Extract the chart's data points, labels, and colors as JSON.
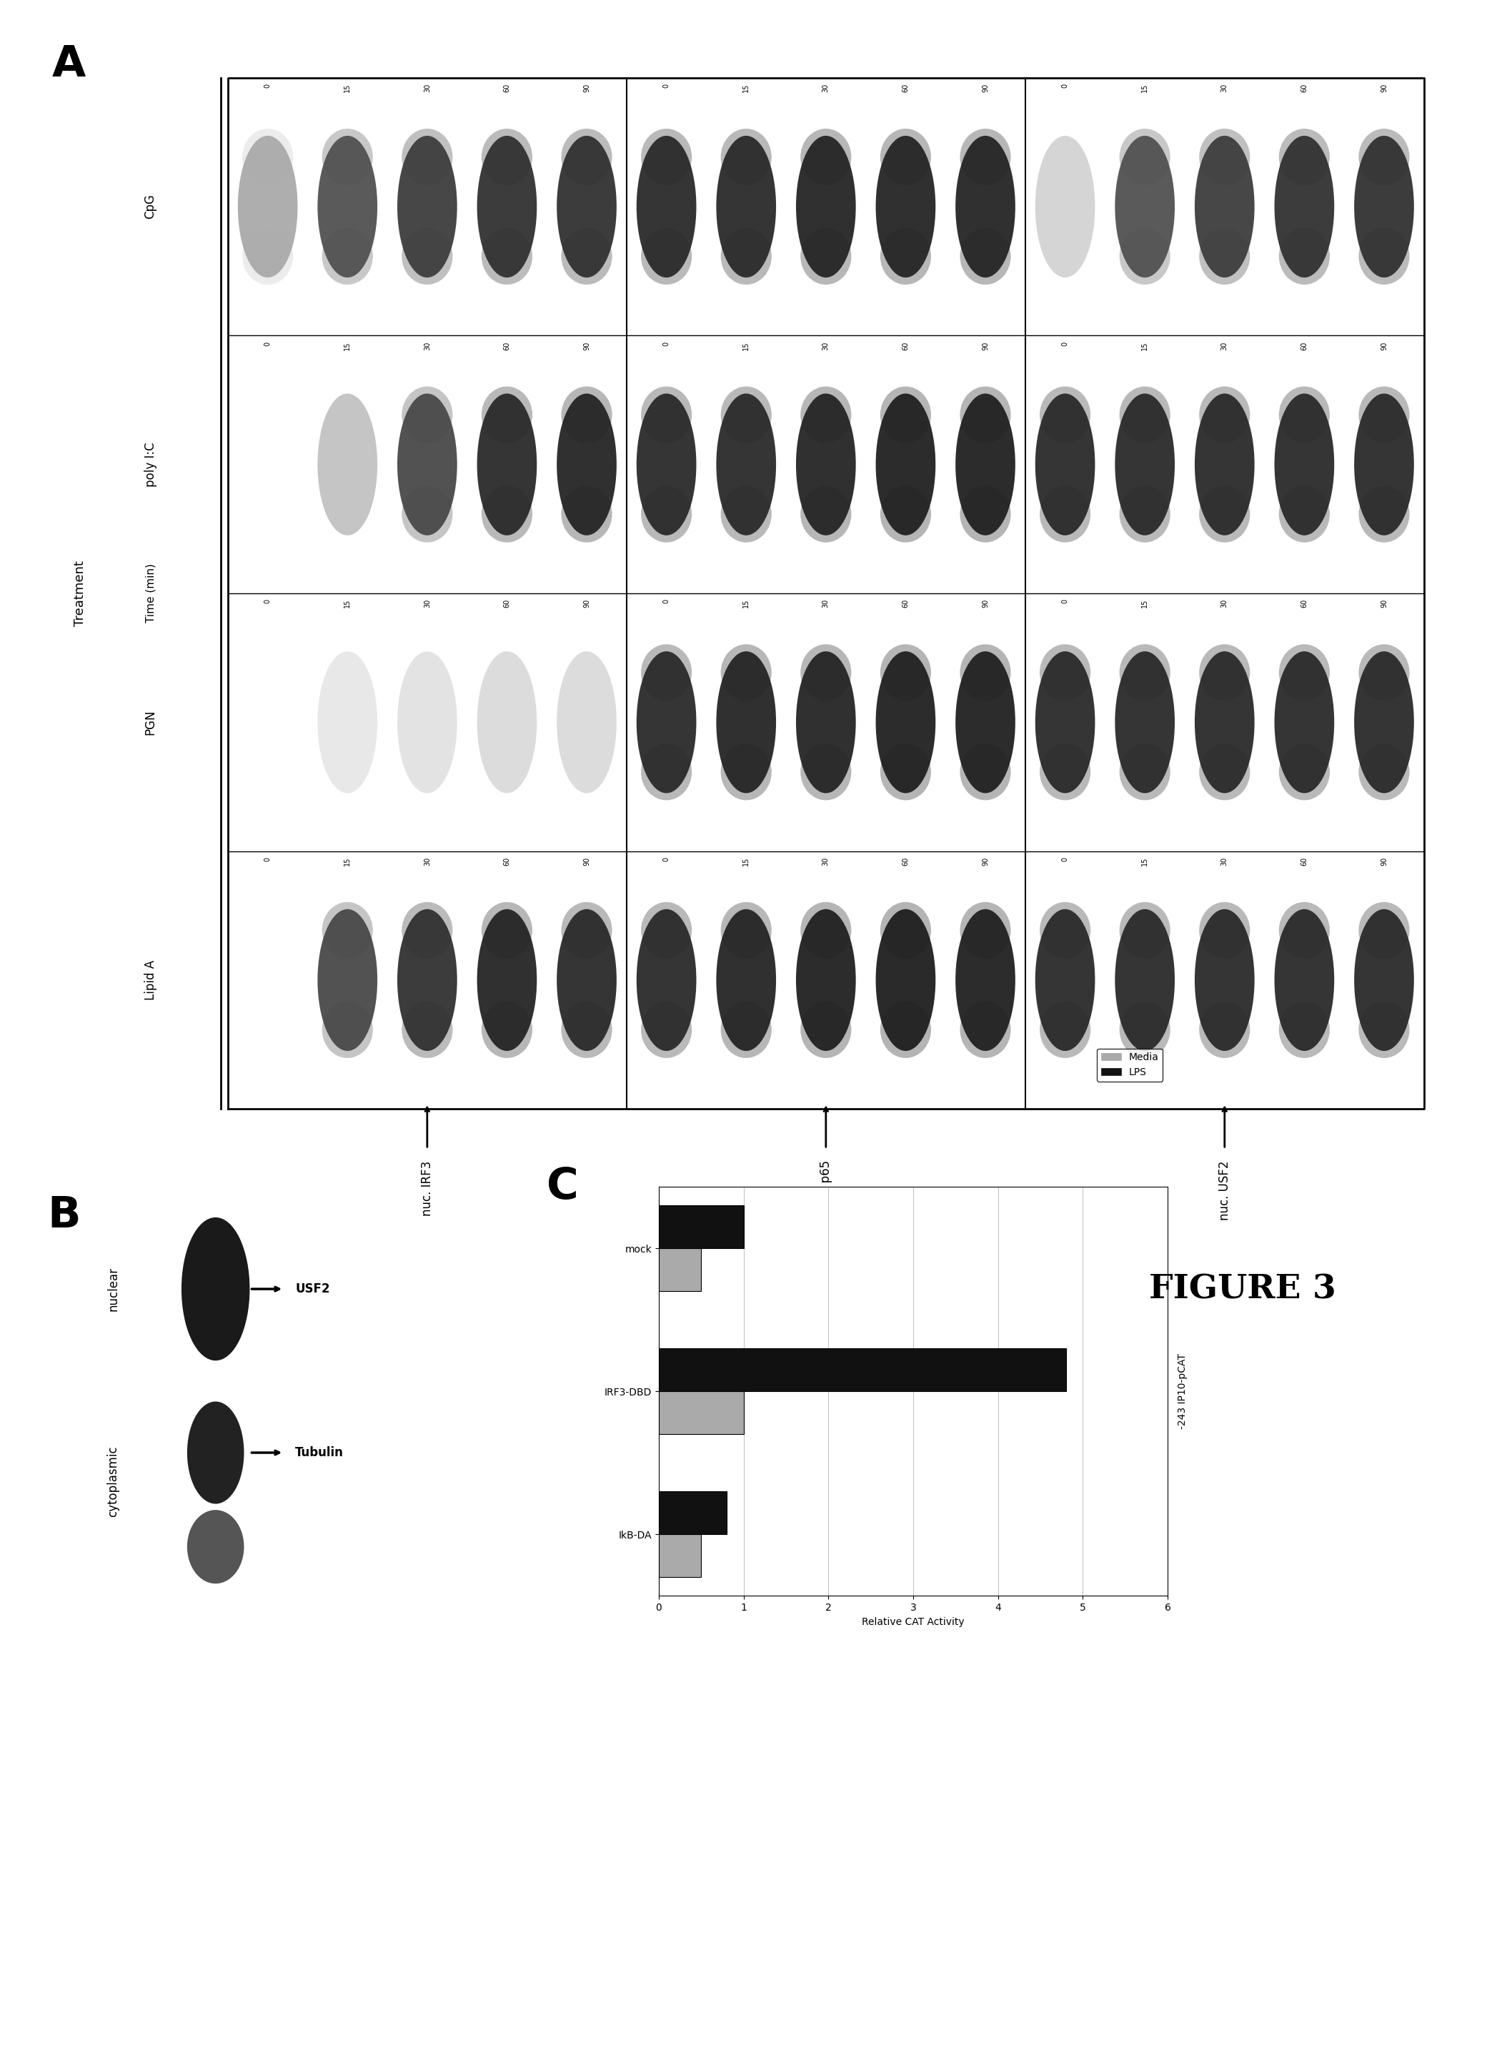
{
  "figure_title": "FIGURE 3",
  "panel_A_label": "A",
  "panel_B_label": "B",
  "panel_C_label": "C",
  "background_color": "#ffffff",
  "treatment_header": "Treatment",
  "time_header": "Time (min)",
  "treatment_labels": [
    "Lipid A",
    "PGN",
    "poly I:C",
    "CpG"
  ],
  "time_points": [
    "0",
    "15",
    "30",
    "60",
    "90"
  ],
  "row_labels": [
    "nuc. IRF3",
    "nuc. p65",
    "nuc. USF2"
  ],
  "bar_categories": [
    "mock",
    "IRF3-DBD",
    "IkB-DA"
  ],
  "bar_media_values": [
    0.5,
    1.0,
    0.5
  ],
  "bar_lps_values": [
    1.0,
    4.8,
    0.8
  ],
  "bar_media_color": "#aaaaaa",
  "bar_lps_color": "#111111",
  "bar_xlim": [
    0,
    6
  ],
  "bar_xlabel": "Relative CAT Activity",
  "bar_title": "-243 IP10-pCAT",
  "legend_media": "Media",
  "legend_lps": "LPS",
  "usf2_label": "USF2",
  "tubulin_label": "Tubulin",
  "nuclear_label": "nuclear",
  "cytoplasmic_label": "cytoplasmic",
  "band_data": {
    "LipidA": {
      "IRF3": [
        0.05,
        0.75,
        0.85,
        0.9,
        0.88
      ],
      "p65": [
        0.88,
        0.9,
        0.92,
        0.93,
        0.92
      ],
      "USF2": [
        0.88,
        0.88,
        0.88,
        0.88,
        0.88
      ]
    },
    "PGN": {
      "IRF3": [
        0.05,
        0.1,
        0.12,
        0.15,
        0.15
      ],
      "p65": [
        0.88,
        0.9,
        0.9,
        0.92,
        0.92
      ],
      "USF2": [
        0.88,
        0.88,
        0.88,
        0.88,
        0.88
      ]
    },
    "polyIC": {
      "IRF3": [
        0.05,
        0.25,
        0.75,
        0.88,
        0.9
      ],
      "p65": [
        0.88,
        0.88,
        0.9,
        0.92,
        0.92
      ],
      "USF2": [
        0.88,
        0.88,
        0.88,
        0.88,
        0.88
      ]
    },
    "CpG": {
      "IRF3": [
        0.35,
        0.72,
        0.8,
        0.85,
        0.85
      ],
      "p65": [
        0.88,
        0.88,
        0.9,
        0.9,
        0.9
      ],
      "USF2": [
        0.18,
        0.72,
        0.8,
        0.85,
        0.85
      ]
    }
  }
}
